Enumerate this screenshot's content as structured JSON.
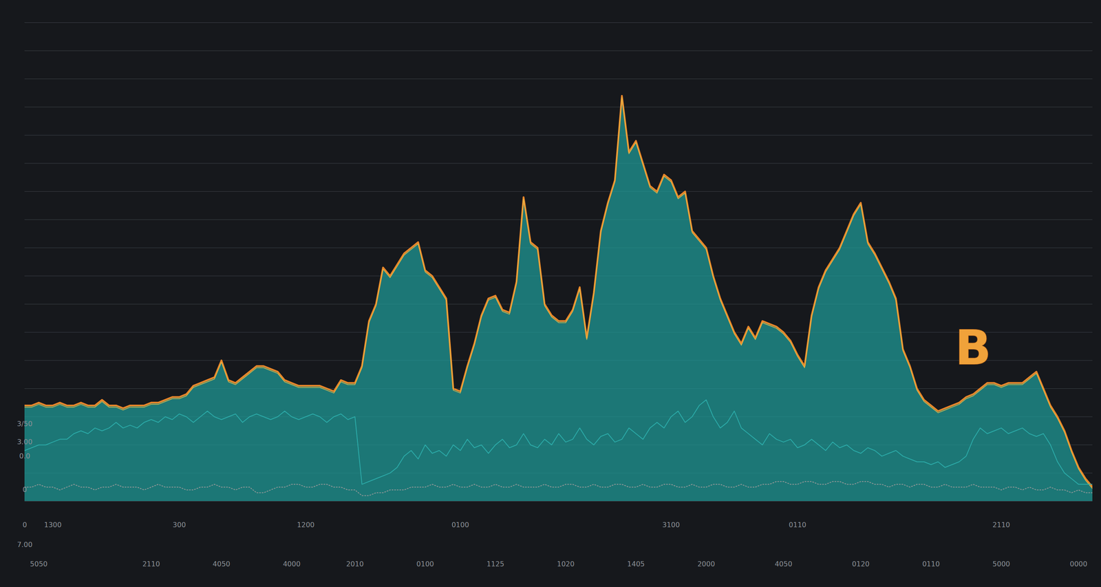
{
  "chart_data": {
    "type": "area",
    "categories": [
      null,
      null,
      "5050",
      null,
      null,
      null,
      null,
      null,
      null,
      null,
      null,
      null,
      null,
      null,
      null,
      null,
      null,
      null,
      "2110",
      null,
      null,
      null,
      null,
      null,
      null,
      null,
      null,
      null,
      "4050",
      null,
      null,
      null,
      null,
      null,
      null,
      null,
      null,
      null,
      "4000",
      null,
      null,
      null,
      null,
      null,
      null,
      null,
      null,
      "2010",
      null,
      null,
      null,
      null,
      null,
      null,
      null,
      null,
      null,
      "0100",
      null,
      null,
      null,
      null,
      null,
      null,
      null,
      null,
      null,
      "1125",
      null,
      null,
      null,
      null,
      null,
      null,
      null,
      null,
      null,
      "1020",
      null,
      null,
      null,
      null,
      null,
      null,
      null,
      null,
      null,
      "1405",
      null,
      null,
      null,
      null,
      null,
      null,
      null,
      null,
      null,
      "2000",
      null,
      null,
      null,
      null,
      null,
      null,
      null,
      null,
      null,
      null,
      "4050",
      null,
      null,
      null,
      null,
      null,
      null,
      null,
      null,
      null,
      null,
      "0120",
      null,
      null,
      null,
      null,
      null,
      null,
      null,
      null,
      null,
      "0110",
      null,
      null,
      null,
      null,
      null,
      null,
      null,
      null,
      null,
      "5000",
      null,
      null,
      null,
      null,
      null,
      null,
      null,
      null,
      null,
      null,
      "0000",
      null,
      null
    ],
    "series": [
      {
        "type": "area",
        "color": "#1f9c9a",
        "values": [
          17,
          17,
          17.5,
          17,
          17,
          17.5,
          17,
          17,
          17.5,
          17,
          17,
          18,
          17,
          17,
          16.5,
          17,
          17,
          17,
          17.5,
          17.5,
          18,
          18.5,
          18.5,
          19,
          20.5,
          21,
          21.5,
          22,
          25,
          21.5,
          21,
          22,
          23,
          24,
          24,
          23.5,
          23,
          21.5,
          21,
          20.5,
          20.5,
          20.5,
          20.5,
          20,
          19.5,
          21.5,
          21,
          21,
          24,
          32,
          35,
          41.5,
          40,
          42,
          44,
          45,
          46,
          41,
          40,
          38,
          36,
          20,
          19.5,
          24,
          28,
          33,
          36,
          36.5,
          34,
          33.5,
          39,
          54,
          46,
          45,
          35,
          33,
          32,
          32,
          34,
          38,
          29,
          37,
          48,
          53,
          57,
          72,
          62,
          64,
          60,
          56,
          55,
          58,
          57,
          54,
          55,
          48,
          46.5,
          45,
          40,
          36,
          33,
          30,
          28,
          31,
          29,
          32,
          31.5,
          31,
          30,
          28.5,
          26,
          24,
          33,
          38,
          41,
          43,
          45,
          48,
          51,
          53,
          46,
          44,
          41.5,
          39,
          36,
          27,
          24,
          20,
          18,
          17,
          16,
          16.5,
          17,
          17.5,
          18.5,
          19,
          20,
          21,
          21,
          20.5,
          21,
          21,
          21,
          22,
          23,
          20,
          17,
          15,
          12.5,
          9,
          6,
          4,
          2.5
        ]
      },
      {
        "type": "line",
        "color": "#2fb3b0",
        "values": [
          9,
          9.5,
          10,
          10,
          10.5,
          11,
          11,
          12,
          12.5,
          12,
          13,
          12.5,
          13,
          14,
          13,
          13.5,
          13,
          14,
          14.5,
          14,
          15,
          14.5,
          15.5,
          15,
          14,
          15,
          16,
          15,
          14.5,
          15,
          15.5,
          14,
          15,
          15.5,
          15,
          14.5,
          15,
          16,
          15,
          14.5,
          15,
          15.5,
          15,
          14,
          15,
          15.5,
          14.5,
          15,
          3,
          3.5,
          4,
          4.5,
          5,
          6,
          8,
          9,
          7.5,
          10,
          8.5,
          9,
          8,
          10,
          9,
          11,
          9.5,
          10,
          8.5,
          10,
          11,
          9.5,
          10,
          12,
          10,
          9.5,
          11,
          10,
          12,
          10.5,
          11,
          13,
          11,
          10,
          11.5,
          12,
          10.5,
          11,
          13,
          12,
          11,
          13,
          14,
          13,
          15,
          16,
          14,
          15,
          17,
          18,
          15,
          13,
          14,
          16,
          13,
          12,
          11,
          10,
          12,
          11,
          10.5,
          11,
          9.5,
          10,
          11,
          10,
          9,
          10.5,
          9.5,
          10,
          9,
          8.5,
          9.5,
          9,
          8,
          8.5,
          9,
          8,
          7.5,
          7,
          7,
          6.5,
          7,
          6,
          6.5,
          7,
          8,
          11,
          13,
          12,
          12.5,
          13,
          12,
          12.5,
          13,
          12,
          11.5,
          12,
          10,
          7,
          5,
          4,
          3,
          3,
          3
        ]
      },
      {
        "type": "line",
        "color": "#9a9a9a",
        "line_style": "dotted",
        "values": [
          2.5,
          2.5,
          3,
          2.5,
          2.5,
          2,
          2.5,
          3,
          2.5,
          2.5,
          2,
          2.5,
          2.5,
          3,
          2.5,
          2.5,
          2.5,
          2,
          2.5,
          3,
          2.5,
          2.5,
          2.5,
          2,
          2,
          2.5,
          2.5,
          3,
          2.5,
          2.5,
          2,
          2.5,
          2.5,
          1.5,
          1.5,
          2,
          2.5,
          2.5,
          3,
          3,
          2.5,
          2.5,
          3,
          3,
          2.5,
          2.5,
          2,
          2,
          1,
          1,
          1.5,
          1.5,
          2,
          2,
          2,
          2.5,
          2.5,
          2.5,
          3,
          2.5,
          2.5,
          3,
          2.5,
          2.5,
          3,
          2.5,
          2.5,
          3,
          2.5,
          2.5,
          3,
          2.5,
          2.5,
          2.5,
          3,
          2.5,
          2.5,
          3,
          3,
          2.5,
          2.5,
          3,
          2.5,
          2.5,
          3,
          3,
          2.5,
          2.5,
          3,
          2.5,
          2.5,
          3,
          3,
          2.5,
          2.5,
          3,
          2.5,
          2.5,
          3,
          3,
          2.5,
          2.5,
          3,
          2.5,
          2.5,
          3,
          3,
          3.5,
          3.5,
          3,
          3,
          3.5,
          3.5,
          3,
          3,
          3.5,
          3.5,
          3,
          3,
          3.5,
          3.5,
          3,
          3,
          2.5,
          3,
          3,
          2.5,
          3,
          3,
          2.5,
          2.5,
          3,
          2.5,
          2.5,
          2.5,
          3,
          2.5,
          2.5,
          2.5,
          2,
          2.5,
          2.5,
          2,
          2.5,
          2,
          2,
          2.5,
          2,
          2,
          1.5,
          2,
          1.5,
          1.5
        ]
      }
    ],
    "ylim": [
      0,
      85
    ],
    "yticks": [
      0,
      5,
      10,
      15,
      20,
      25,
      30,
      35,
      40,
      45,
      50,
      55,
      60,
      65,
      70,
      75,
      80,
      85
    ],
    "grid": true,
    "tick_labels": "x",
    "annotations": [
      {
        "text": "1300",
        "x": 4,
        "y": -4.25
      },
      {
        "text": "300",
        "x": 22,
        "y": -4.25
      },
      {
        "text": "1200",
        "x": 40,
        "y": -4.25
      },
      {
        "text": "0100",
        "x": 62,
        "y": -4.25
      },
      {
        "text": "3100",
        "x": 92,
        "y": -4.25
      },
      {
        "text": "0110",
        "x": 110,
        "y": -4.25
      },
      {
        "text": "2110",
        "x": 139,
        "y": -4.25
      },
      {
        "text": "3/50",
        "x": 0,
        "y": 13.75
      },
      {
        "text": "3.00",
        "x": 0,
        "y": 10.5
      },
      {
        "text": "0.0",
        "x": 0,
        "y": 8
      },
      {
        "text": "0",
        "x": 0,
        "y": 2
      },
      {
        "text": "0",
        "x": 0,
        "y": -4.25
      },
      {
        "text": "7.00",
        "x": 0,
        "y": -7.75
      },
      {
        "text": "B",
        "x": 135,
        "y": 27
      }
    ]
  }
}
